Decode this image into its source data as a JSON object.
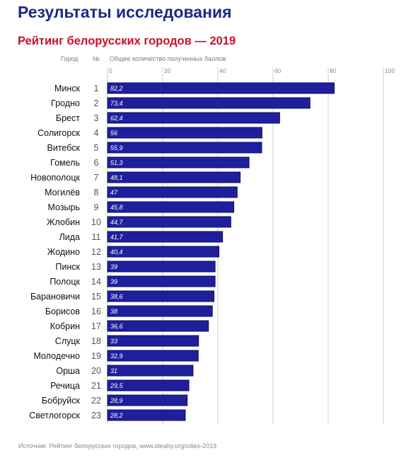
{
  "header": {
    "title": "Результаты исследования",
    "subtitle": "Рейтинг белорусских городов — 2019"
  },
  "columns": {
    "city": "Город",
    "rank": "№",
    "score": "Общее количество полученных баллов"
  },
  "source": "Источник: Рейтинг белорусских городов, www.ideaby.org/cities-2019",
  "colors": {
    "title": "#1b2a86",
    "subtitle": "#c8102e",
    "bar": "#1f1f9e",
    "bar_outline": "#0c0c5e",
    "grid": "#cfcfcf"
  },
  "chart_data": {
    "type": "bar",
    "orientation": "horizontal",
    "title": "Рейтинг белорусских городов — 2019",
    "xlabel": "Общее количество полученных баллов",
    "xlim": [
      0,
      100
    ],
    "xticks": [
      0,
      20,
      40,
      60,
      80,
      100
    ],
    "grid": true,
    "categories": [
      "Минск",
      "Гродно",
      "Брест",
      "Солигорск",
      "Витебск",
      "Гомель",
      "Новополоцк",
      "Могилёв",
      "Мозырь",
      "Жлобин",
      "Лида",
      "Жодино",
      "Пинск",
      "Полоцк",
      "Барановичи",
      "Борисов",
      "Кобрин",
      "Слуцк",
      "Молодечно",
      "Орша",
      "Речица",
      "Бобруйск",
      "Светлогорск"
    ],
    "ranks": [
      "1",
      "2",
      "3",
      "4",
      "5",
      "6",
      "7",
      "8",
      "9",
      "10",
      "11",
      "12",
      "13",
      "14",
      "15",
      "16",
      "17",
      "18",
      "19",
      "20",
      "21",
      "22",
      "23"
    ],
    "values": [
      82.2,
      73.4,
      62.4,
      56,
      55.9,
      51.3,
      48.1,
      47,
      45.8,
      44.7,
      41.7,
      40.4,
      39,
      39,
      38.6,
      38,
      36.6,
      33,
      32.9,
      31,
      29.5,
      28.9,
      28.2
    ],
    "value_labels": [
      "82,2",
      "73,4",
      "62,4",
      "56",
      "55,9",
      "51,3",
      "48,1",
      "47",
      "45,8",
      "44,7",
      "41,7",
      "40,4",
      "39",
      "39",
      "38,6",
      "38",
      "36,6",
      "33",
      "32,9",
      "31",
      "29,5",
      "28,9",
      "28,2"
    ]
  }
}
